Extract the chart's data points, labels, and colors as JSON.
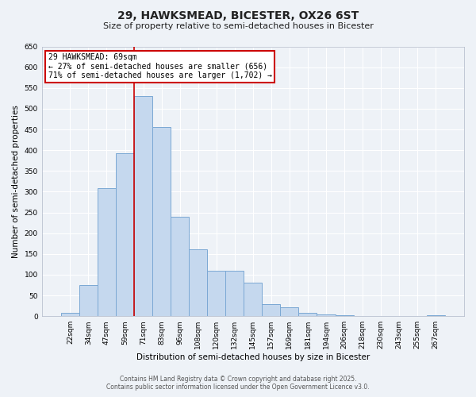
{
  "title": "29, HAWKSMEAD, BICESTER, OX26 6ST",
  "subtitle": "Size of property relative to semi-detached houses in Bicester",
  "xlabel": "Distribution of semi-detached houses by size in Bicester",
  "ylabel": "Number of semi-detached properties",
  "bar_labels": [
    "22sqm",
    "34sqm",
    "47sqm",
    "59sqm",
    "71sqm",
    "83sqm",
    "96sqm",
    "108sqm",
    "120sqm",
    "132sqm",
    "145sqm",
    "157sqm",
    "169sqm",
    "181sqm",
    "194sqm",
    "206sqm",
    "218sqm",
    "230sqm",
    "243sqm",
    "255sqm",
    "267sqm"
  ],
  "bar_values": [
    8,
    75,
    308,
    392,
    530,
    455,
    240,
    162,
    110,
    110,
    80,
    30,
    22,
    8,
    5,
    2,
    1,
    1,
    0,
    0,
    2
  ],
  "bar_color": "#c5d8ee",
  "bar_edge_color": "#7ba8d4",
  "vline_index": 4,
  "vline_color": "#cc0000",
  "annotation_title": "29 HAWKSMEAD: 69sqm",
  "annotation_line1": "← 27% of semi-detached houses are smaller (656)",
  "annotation_line2": "71% of semi-detached houses are larger (1,702) →",
  "annotation_box_color": "#ffffff",
  "annotation_box_edge": "#cc0000",
  "ylim": [
    0,
    650
  ],
  "yticks": [
    0,
    50,
    100,
    150,
    200,
    250,
    300,
    350,
    400,
    450,
    500,
    550,
    600,
    650
  ],
  "bg_color": "#eef2f7",
  "grid_color": "#ffffff",
  "footer1": "Contains HM Land Registry data © Crown copyright and database right 2025.",
  "footer2": "Contains public sector information licensed under the Open Government Licence v3.0."
}
